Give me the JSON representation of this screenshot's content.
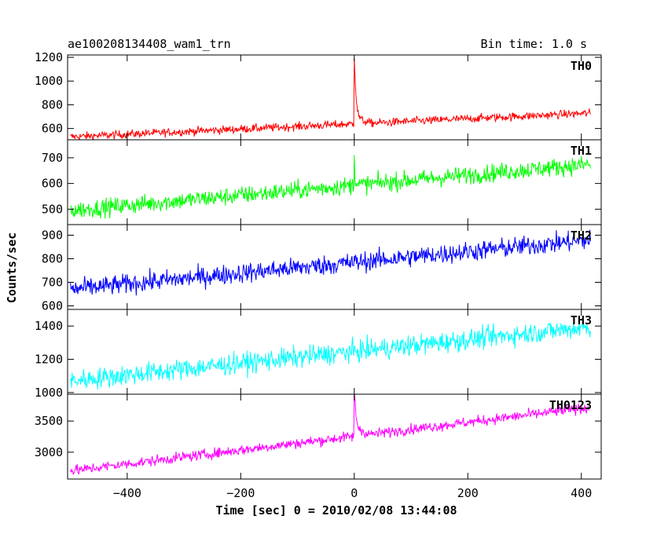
{
  "header": {
    "title": "ae100208134408_wam1_trn",
    "bin_time": "Bin time: 1.0 s"
  },
  "chart_data": {
    "type": "line",
    "xlabel": "Time [sec] 0 = 2010/02/08 13:44:08",
    "ylabel": "Counts/sec",
    "xlim": [
      -505,
      435
    ],
    "xticks": [
      -400,
      -200,
      0,
      200,
      400
    ],
    "xtick_labels": [
      "−400",
      "−200",
      "0",
      "200",
      "400"
    ],
    "x_range": [
      -500,
      416
    ],
    "panels": [
      {
        "name": "TH0",
        "color": "#ff0000",
        "ylim": [
          505,
          1220
        ],
        "yticks": [
          600,
          800,
          1000,
          1200
        ],
        "start": 530,
        "end": 730,
        "noise": 25,
        "peak": 1220,
        "peak_decay_s": 3,
        "step_after": 70
      },
      {
        "name": "TH1",
        "color": "#00ff00",
        "ylim": [
          440,
          770
        ],
        "yticks": [
          500,
          600,
          700
        ],
        "start": 495,
        "end": 675,
        "noise": 25,
        "peak": 710,
        "peak_decay_s": 1.5,
        "step_after": 0
      },
      {
        "name": "TH2",
        "color": "#0000ff",
        "ylim": [
          585,
          945
        ],
        "yticks": [
          600,
          700,
          800,
          900
        ],
        "start": 670,
        "end": 880,
        "noise": 30,
        "peak": 0,
        "peak_decay_s": 1,
        "step_after": 0
      },
      {
        "name": "TH3",
        "color": "#00ffff",
        "ylim": [
          990,
          1500
        ],
        "yticks": [
          1000,
          1200,
          1400
        ],
        "start": 1070,
        "end": 1395,
        "noise": 45,
        "peak": 0,
        "peak_decay_s": 1,
        "step_after": 0
      },
      {
        "name": "TH0123",
        "color": "#ff00ff",
        "ylim": [
          2570,
          3930
        ],
        "yticks": [
          3000,
          3500
        ],
        "start": 2700,
        "end": 3720,
        "noise": 60,
        "peak": 3930,
        "peak_decay_s": 3,
        "step_after": 180
      }
    ]
  }
}
